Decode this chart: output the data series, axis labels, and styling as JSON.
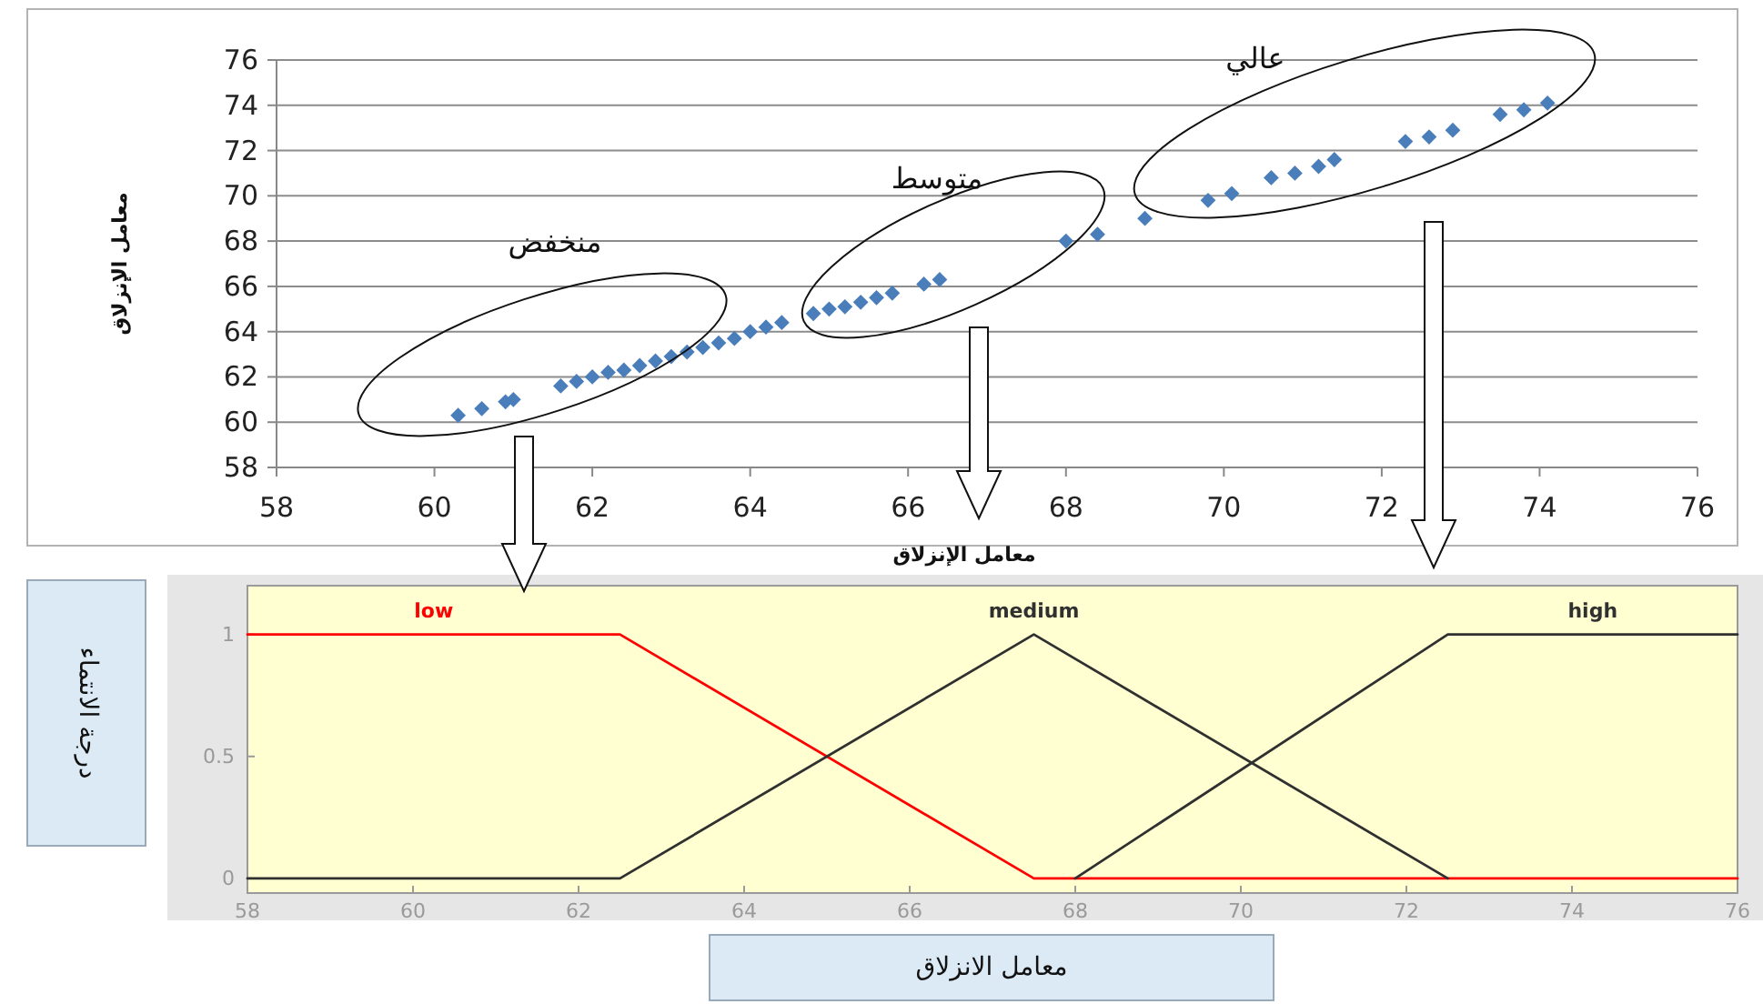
{
  "chart_data": [
    {
      "type": "scatter",
      "xlabel": "معامل الإنزلاق",
      "ylabel": "معامل الإنزلاق",
      "x": [
        60.3,
        60.6,
        60.9,
        61.0,
        61.6,
        61.8,
        62.0,
        62.2,
        62.4,
        62.6,
        62.8,
        63.0,
        63.2,
        63.4,
        63.6,
        63.8,
        64.0,
        64.2,
        64.4,
        64.8,
        65.0,
        65.2,
        65.4,
        65.6,
        65.8,
        66.2,
        66.4,
        68.0,
        68.4,
        69.0,
        69.8,
        70.1,
        70.6,
        70.9,
        71.2,
        71.4,
        72.3,
        72.6,
        72.9,
        73.5,
        73.8,
        74.1
      ],
      "values": [
        60.3,
        60.6,
        60.9,
        61.0,
        61.6,
        61.8,
        62.0,
        62.2,
        62.3,
        62.5,
        62.7,
        62.9,
        63.1,
        63.3,
        63.5,
        63.7,
        64.0,
        64.2,
        64.4,
        64.8,
        65.0,
        65.1,
        65.3,
        65.5,
        65.7,
        66.1,
        66.3,
        68.0,
        68.3,
        69.0,
        69.8,
        70.1,
        70.8,
        71.0,
        71.3,
        71.6,
        72.4,
        72.6,
        72.9,
        73.6,
        73.8,
        74.1
      ],
      "color": "#4a7ebb",
      "marker": "diamond",
      "xlim": [
        58,
        76
      ],
      "ylim": [
        58,
        76
      ],
      "xticks": [
        58,
        60,
        62,
        64,
        66,
        68,
        70,
        72,
        74,
        76
      ],
      "yticks": [
        58,
        60,
        62,
        64,
        66,
        68,
        70,
        72,
        74,
        76
      ],
      "grid": "y",
      "annotations": [
        "منخفض",
        "متوسط",
        "عالي"
      ]
    },
    {
      "type": "line",
      "xlabel": "معامل الانزلاق",
      "ylabel": "درجة الانتماء",
      "series": [
        {
          "name": "low",
          "color": "#ff0000",
          "x": [
            58,
            62.5,
            67.5,
            76
          ],
          "values": [
            1,
            1,
            0,
            0
          ]
        },
        {
          "name": "medium",
          "color": "#303030",
          "x": [
            58,
            62.5,
            67.5,
            72.5
          ],
          "values": [
            0,
            0,
            1,
            0
          ]
        },
        {
          "name": "high",
          "color": "#303030",
          "x": [
            68,
            72.5,
            76
          ],
          "values": [
            0,
            1,
            1
          ]
        }
      ],
      "xlim": [
        58,
        76
      ],
      "ylim": [
        -0.06,
        1.2
      ],
      "xticks": [
        58,
        60,
        62,
        64,
        66,
        68,
        70,
        72,
        74,
        76
      ],
      "yticks": [
        0,
        0.5,
        1
      ]
    }
  ]
}
